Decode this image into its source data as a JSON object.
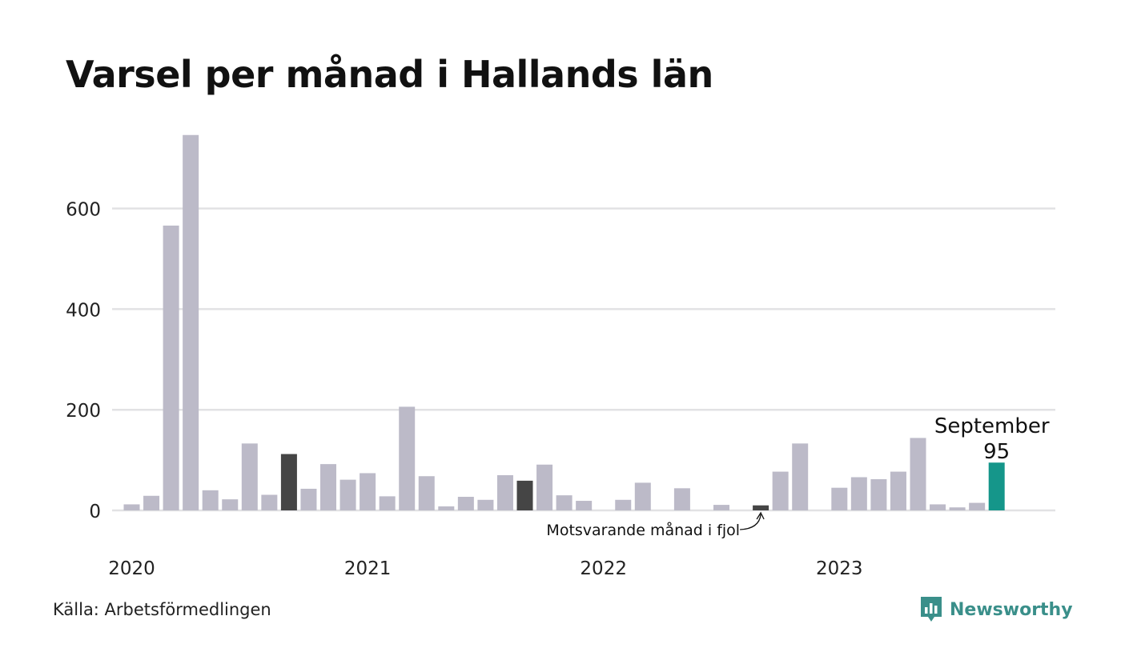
{
  "title": "Varsel per månad i Hallands län",
  "source": "Källa: Arbetsförmedlingen",
  "brand": {
    "name": "Newsworthy",
    "icon": "bar-chart-speech-icon",
    "color": "#3a8f8a"
  },
  "colors": {
    "bar": "#bcbac8",
    "same_month_prev_years": "#454545",
    "highlight": "#15968a",
    "grid": "#e2e2e4"
  },
  "annotation": {
    "previous_year_label": "Motsvarande månad i fjol"
  },
  "chart_data": {
    "type": "bar",
    "title": "Varsel per månad i Hallands län",
    "xlabel": "",
    "ylabel": "",
    "ylim": [
      0,
      750
    ],
    "y_ticks": [
      0,
      200,
      400,
      600
    ],
    "x_tick_labels": [
      "2020",
      "2021",
      "2022",
      "2023"
    ],
    "grid": true,
    "categories": [
      "2020-01",
      "2020-02",
      "2020-03",
      "2020-04",
      "2020-05",
      "2020-06",
      "2020-07",
      "2020-08",
      "2020-09",
      "2020-10",
      "2020-11",
      "2020-12",
      "2021-01",
      "2021-02",
      "2021-03",
      "2021-04",
      "2021-05",
      "2021-06",
      "2021-07",
      "2021-08",
      "2021-09",
      "2021-10",
      "2021-11",
      "2021-12",
      "2022-01",
      "2022-02",
      "2022-03",
      "2022-04",
      "2022-05",
      "2022-06",
      "2022-07",
      "2022-08",
      "2022-09",
      "2022-10",
      "2022-11",
      "2022-12",
      "2023-01",
      "2023-02",
      "2023-03",
      "2023-04",
      "2023-05",
      "2023-06",
      "2023-07",
      "2023-08",
      "2023-09"
    ],
    "values": [
      12,
      29,
      566,
      746,
      40,
      22,
      133,
      31,
      112,
      43,
      92,
      61,
      74,
      28,
      206,
      68,
      8,
      27,
      21,
      70,
      59,
      91,
      30,
      19,
      0,
      21,
      55,
      0,
      44,
      0,
      11,
      0,
      10,
      77,
      133,
      0,
      45,
      66,
      62,
      77,
      144,
      12,
      6,
      15,
      95
    ],
    "dark_bar_indices": [
      8,
      20,
      32
    ],
    "highlight": {
      "index": 44,
      "label": "September",
      "value": "95"
    }
  }
}
